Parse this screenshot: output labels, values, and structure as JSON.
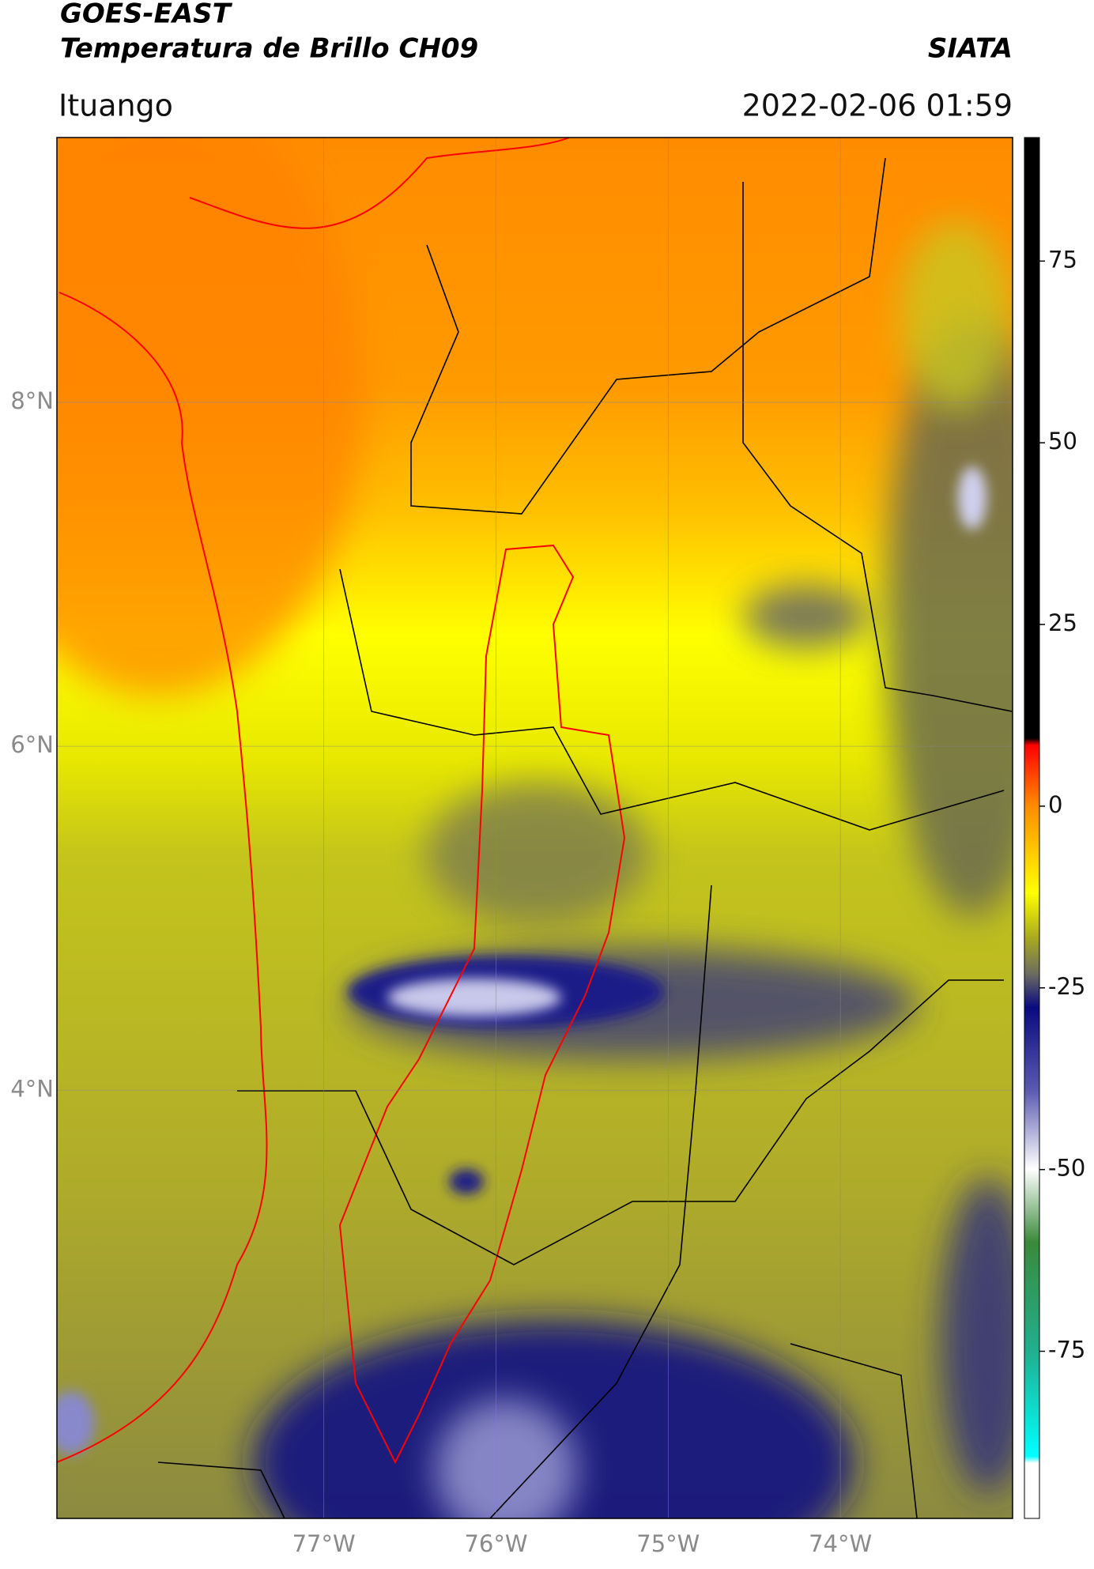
{
  "header": {
    "title": "GOES-EAST",
    "subtitle": "Temperatura de Brillo CH09",
    "source": "SIATA",
    "location": "Ituango",
    "datetime": "2022-02-06 01:59"
  },
  "map": {
    "xlim": [
      -78.55,
      -73.0
    ],
    "ylim": [
      1.51,
      9.54
    ],
    "xticks": [
      {
        "value": -77,
        "label": "77°W"
      },
      {
        "value": -76,
        "label": "76°W"
      },
      {
        "value": -75,
        "label": "75°W"
      },
      {
        "value": -74,
        "label": "74°W"
      }
    ],
    "yticks": [
      {
        "value": 8,
        "label": "8°N"
      },
      {
        "value": 6,
        "label": "6°N"
      },
      {
        "value": 4,
        "label": "4°N"
      }
    ],
    "grid": true
  },
  "colorbar": {
    "lim": [
      -98,
      92
    ],
    "ticks": [
      75,
      50,
      25,
      0,
      -25,
      -50,
      -75
    ]
  }
}
